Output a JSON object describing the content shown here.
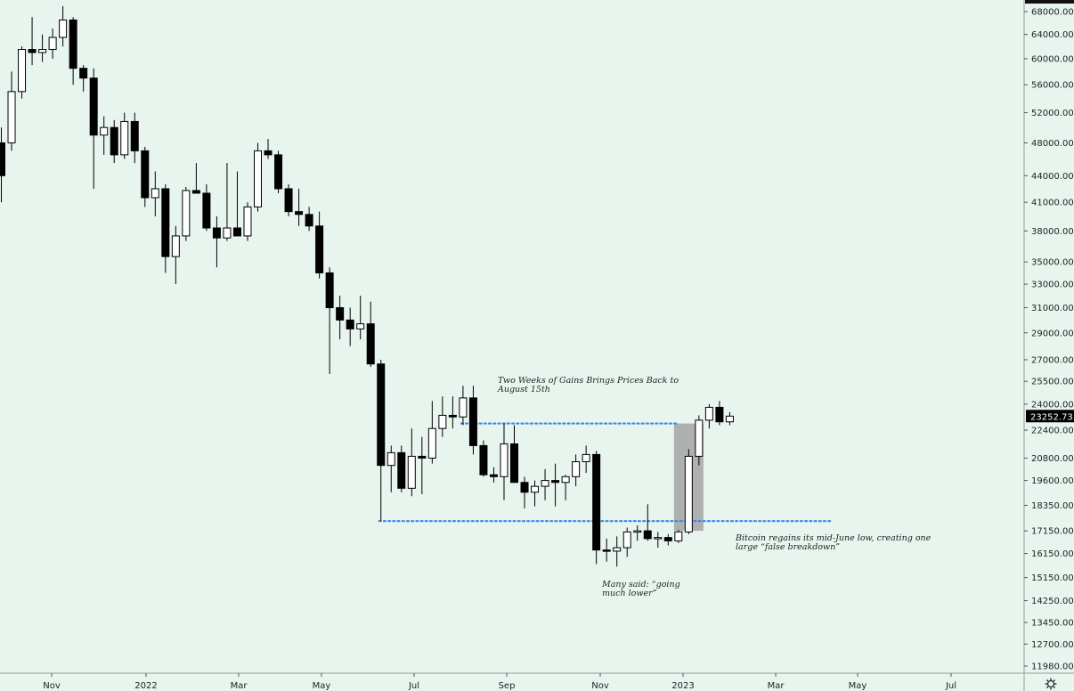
{
  "chart_data": {
    "type": "candlestick",
    "title": "",
    "xlabel": "",
    "ylabel": "",
    "yscale": "log",
    "ylim": [
      11500,
      70000
    ],
    "y_ticks": [
      68000,
      64000,
      60000,
      56000,
      52000,
      48000,
      44000,
      41000,
      38000,
      35000,
      33000,
      31000,
      29000,
      27000,
      25500,
      24000,
      22400,
      20800,
      19600,
      18350,
      17150,
      16150,
      15150,
      14250,
      13450,
      12700,
      11980
    ],
    "y_tick_labels": [
      "68000.00",
      "64000.00",
      "60000.00",
      "56000.00",
      "52000.00",
      "48000.00",
      "44000.00",
      "41000.00",
      "38000.00",
      "35000.00",
      "33000.00",
      "31000.00",
      "29000.00",
      "27000.00",
      "25500.00",
      "24000.00",
      "22400.00",
      "20800.00",
      "19600.00",
      "18350.00",
      "17150.00",
      "16150.00",
      "15150.00",
      "14250.00",
      "13450.00",
      "12700.00",
      "11980.00"
    ],
    "x_tick_labels": [
      "Nov",
      "2022",
      "Mar",
      "May",
      "Jul",
      "Sep",
      "Nov",
      "2023",
      "Mar",
      "May",
      "Jul"
    ],
    "current_price_label": "23252.73",
    "current_price": 23252.73,
    "interval": "weekly",
    "candles": [
      {
        "o": 48000,
        "h": 50000,
        "l": 41000,
        "c": 44000
      },
      {
        "o": 48000,
        "h": 58000,
        "l": 47000,
        "c": 55000
      },
      {
        "o": 55000,
        "h": 62000,
        "l": 54000,
        "c": 61500
      },
      {
        "o": 61500,
        "h": 67000,
        "l": 59000,
        "c": 61000
      },
      {
        "o": 61000,
        "h": 64000,
        "l": 59500,
        "c": 61500
      },
      {
        "o": 61500,
        "h": 65000,
        "l": 60000,
        "c": 63500
      },
      {
        "o": 63500,
        "h": 69000,
        "l": 62000,
        "c": 66500
      },
      {
        "o": 66500,
        "h": 67000,
        "l": 56000,
        "c": 58500
      },
      {
        "o": 58500,
        "h": 59000,
        "l": 55000,
        "c": 57000
      },
      {
        "o": 57000,
        "h": 58500,
        "l": 42500,
        "c": 49000
      },
      {
        "o": 49000,
        "h": 51500,
        "l": 46500,
        "c": 50000
      },
      {
        "o": 50000,
        "h": 51000,
        "l": 45500,
        "c": 46500
      },
      {
        "o": 46500,
        "h": 52000,
        "l": 46000,
        "c": 50800
      },
      {
        "o": 50800,
        "h": 52000,
        "l": 45500,
        "c": 47000
      },
      {
        "o": 47000,
        "h": 47500,
        "l": 40500,
        "c": 41500
      },
      {
        "o": 41500,
        "h": 44500,
        "l": 39500,
        "c": 42500
      },
      {
        "o": 42500,
        "h": 43000,
        "l": 34000,
        "c": 35500
      },
      {
        "o": 35500,
        "h": 38500,
        "l": 33000,
        "c": 37500
      },
      {
        "o": 37500,
        "h": 42700,
        "l": 37000,
        "c": 42300
      },
      {
        "o": 42300,
        "h": 45500,
        "l": 42000,
        "c": 42000
      },
      {
        "o": 42000,
        "h": 43000,
        "l": 38000,
        "c": 38300
      },
      {
        "o": 38300,
        "h": 39500,
        "l": 34500,
        "c": 37300
      },
      {
        "o": 37300,
        "h": 45500,
        "l": 37000,
        "c": 38300
      },
      {
        "o": 38300,
        "h": 44500,
        "l": 37500,
        "c": 37500
      },
      {
        "o": 37500,
        "h": 41000,
        "l": 37000,
        "c": 40500
      },
      {
        "o": 40500,
        "h": 48000,
        "l": 40000,
        "c": 47000
      },
      {
        "o": 47000,
        "h": 48500,
        "l": 46000,
        "c": 46500
      },
      {
        "o": 46500,
        "h": 47000,
        "l": 42000,
        "c": 42500
      },
      {
        "o": 42500,
        "h": 43000,
        "l": 39500,
        "c": 40000
      },
      {
        "o": 40000,
        "h": 42500,
        "l": 38500,
        "c": 39700
      },
      {
        "o": 39700,
        "h": 40500,
        "l": 38000,
        "c": 38500
      },
      {
        "o": 38500,
        "h": 40000,
        "l": 33500,
        "c": 34000
      },
      {
        "o": 34000,
        "h": 34500,
        "l": 26000,
        "c": 31000
      },
      {
        "o": 31000,
        "h": 32000,
        "l": 28500,
        "c": 30000
      },
      {
        "o": 30000,
        "h": 31000,
        "l": 28000,
        "c": 29300
      },
      {
        "o": 29300,
        "h": 32000,
        "l": 28500,
        "c": 29700
      },
      {
        "o": 29700,
        "h": 31500,
        "l": 26500,
        "c": 26700
      },
      {
        "o": 26700,
        "h": 27000,
        "l": 17600,
        "c": 20400
      },
      {
        "o": 20400,
        "h": 21500,
        "l": 19000,
        "c": 21100
      },
      {
        "o": 21100,
        "h": 21500,
        "l": 19000,
        "c": 19200
      },
      {
        "o": 19200,
        "h": 22500,
        "l": 18800,
        "c": 20900
      },
      {
        "o": 20900,
        "h": 22000,
        "l": 18900,
        "c": 20800
      },
      {
        "o": 20800,
        "h": 24200,
        "l": 20500,
        "c": 22500
      },
      {
        "o": 22500,
        "h": 24500,
        "l": 22000,
        "c": 23300
      },
      {
        "o": 23300,
        "h": 24500,
        "l": 22500,
        "c": 23200
      },
      {
        "o": 23200,
        "h": 25200,
        "l": 22700,
        "c": 24400
      },
      {
        "o": 24400,
        "h": 25200,
        "l": 21000,
        "c": 21500
      },
      {
        "o": 21500,
        "h": 21800,
        "l": 19800,
        "c": 19900
      },
      {
        "o": 19900,
        "h": 20300,
        "l": 19500,
        "c": 19800
      },
      {
        "o": 19800,
        "h": 22800,
        "l": 18600,
        "c": 21600
      },
      {
        "o": 21600,
        "h": 22700,
        "l": 19500,
        "c": 19500
      },
      {
        "o": 19500,
        "h": 19800,
        "l": 18200,
        "c": 19000
      },
      {
        "o": 19000,
        "h": 19600,
        "l": 18300,
        "c": 19300
      },
      {
        "o": 19300,
        "h": 20200,
        "l": 18600,
        "c": 19600
      },
      {
        "o": 19600,
        "h": 20500,
        "l": 18300,
        "c": 19500
      },
      {
        "o": 19500,
        "h": 19900,
        "l": 18600,
        "c": 19800
      },
      {
        "o": 19800,
        "h": 21000,
        "l": 19300,
        "c": 20600
      },
      {
        "o": 20600,
        "h": 21500,
        "l": 20000,
        "c": 21000
      },
      {
        "o": 21000,
        "h": 21200,
        "l": 15700,
        "c": 16300
      },
      {
        "o": 16300,
        "h": 16800,
        "l": 15800,
        "c": 16250
      },
      {
        "o": 16250,
        "h": 16900,
        "l": 15600,
        "c": 16400
      },
      {
        "o": 16400,
        "h": 17300,
        "l": 16000,
        "c": 17100
      },
      {
        "o": 17100,
        "h": 17400,
        "l": 16700,
        "c": 17150
      },
      {
        "o": 17150,
        "h": 18400,
        "l": 16700,
        "c": 16800
      },
      {
        "o": 16800,
        "h": 17100,
        "l": 16400,
        "c": 16850
      },
      {
        "o": 16850,
        "h": 17000,
        "l": 16500,
        "c": 16700
      },
      {
        "o": 16700,
        "h": 17200,
        "l": 16600,
        "c": 17100
      },
      {
        "o": 17100,
        "h": 21300,
        "l": 17000,
        "c": 20900
      },
      {
        "o": 20900,
        "h": 23300,
        "l": 20400,
        "c": 23000
      },
      {
        "o": 23000,
        "h": 24000,
        "l": 22500,
        "c": 23800
      },
      {
        "o": 23800,
        "h": 24200,
        "l": 22700,
        "c": 22900
      },
      {
        "o": 22900,
        "h": 23500,
        "l": 22700,
        "c": 23250
      }
    ],
    "levels": [
      {
        "value": 22800,
        "from_index": 45,
        "to_index": 66,
        "color": "#3a86e8",
        "style": "dotted"
      },
      {
        "value": 17600,
        "from_index": 37,
        "to_index": 81,
        "color": "#3a86e8",
        "style": "dotted"
      }
    ],
    "highlight": {
      "from_index": 66,
      "to_index": 68,
      "y_from": 17150,
      "y_to": 22800,
      "color": "#a8a8a8"
    },
    "annotations": [
      {
        "lines": [
          "Two Weeks of Gains Brings Prices Back to",
          "August 15th"
        ]
      },
      {
        "lines": [
          "Bitcoin regains its mid-June low, creating one",
          "large “false breakdown”"
        ]
      },
      {
        "lines": [
          "Many said: “going",
          "much lower”"
        ]
      }
    ],
    "colors": {
      "background": "#e8f5ee",
      "up_body": "#ffffff",
      "down_body": "#000000",
      "wick": "#000000",
      "level_line": "#3a86e8",
      "price_tag": "#000000",
      "price_tag_text": "#ffffff"
    },
    "grid": false
  }
}
